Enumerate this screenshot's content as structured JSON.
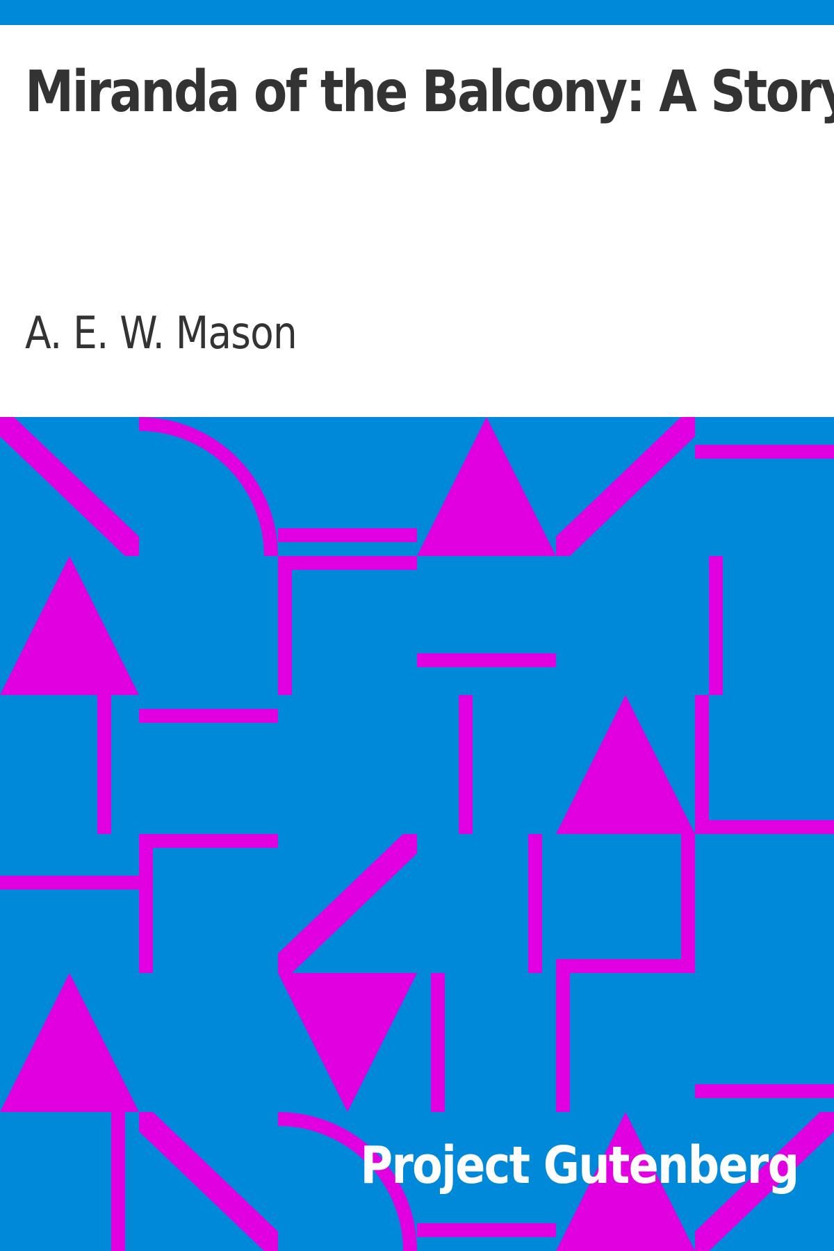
{
  "book": {
    "title": "Miranda of the Balcony: A Story",
    "author": "A. E. W. Mason",
    "publisher": "Project Gutenberg"
  },
  "colors": {
    "top_bar": "#0089d9",
    "background": "#ffffff",
    "pattern_background": "#0089d9",
    "pattern_shapes": "#e000e0",
    "title_text": "#333333",
    "author_text": "#333333",
    "publisher_text": "#ffffff"
  }
}
